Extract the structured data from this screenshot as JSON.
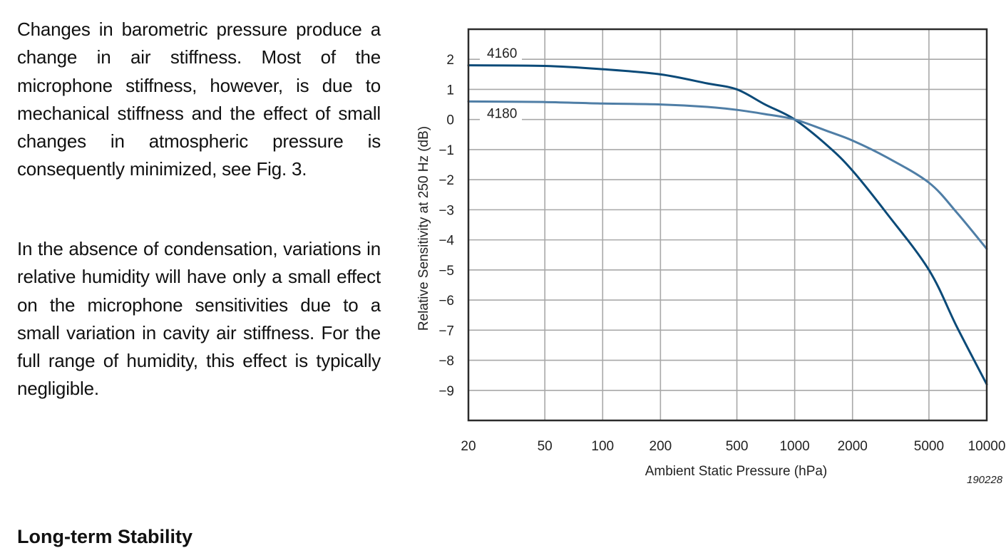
{
  "text": {
    "paragraph_1": "Changes in barometric pressure produce a change in air stiffness. Most of the microphone stiffness, however, is due to mechanical stiffness and the effect of small changes in atmospheric pressure is consequently minimized, see Fig. 3.",
    "paragraph_2": "In the absence of condensation, variations in relative humidity will have only a small effect on the microphone sensitivities due to a small variation in cavity air stiffness. For the full range of humidity, this effect is typically negligible.",
    "next_heading": "Long-term Stability"
  },
  "chart_data": {
    "type": "line",
    "title": "",
    "xlabel": "Ambient Static Pressure (hPa)",
    "ylabel": "Relative Sensitivity at 250 Hz (dB)",
    "xscale": "log",
    "xlim": [
      20,
      10000
    ],
    "ylim": [
      -10,
      3
    ],
    "grid": true,
    "x_ticks": [
      20,
      50,
      100,
      200,
      500,
      1000,
      2000,
      5000,
      10000
    ],
    "x_tick_labels": [
      "20",
      "50",
      "100",
      "200",
      "500",
      "1000",
      "2000",
      "5000",
      "10000"
    ],
    "y_ticks": [
      2,
      1,
      0,
      -1,
      -2,
      -3,
      -4,
      -5,
      -6,
      -7,
      -8,
      -9
    ],
    "y_tick_labels": [
      "2",
      "1",
      "0",
      "−1",
      "−2",
      "−3",
      "−4",
      "−5",
      "−6",
      "−7",
      "−8",
      "−9"
    ],
    "figure_id": "190228",
    "series": [
      {
        "name": "4160",
        "color": "#0b4a78",
        "label_at_y": 2,
        "x": [
          20,
          50,
          100,
          200,
          350,
          500,
          700,
          1000,
          1500,
          2000,
          3000,
          5000,
          7000,
          10000
        ],
        "values": [
          1.8,
          1.78,
          1.67,
          1.5,
          1.2,
          1.0,
          0.5,
          0.0,
          -0.9,
          -1.7,
          -3.1,
          -5.0,
          -6.9,
          -8.8
        ]
      },
      {
        "name": "4180",
        "color": "#4f7ea6",
        "label_at_y": 0,
        "x": [
          20,
          50,
          100,
          200,
          350,
          500,
          700,
          1000,
          1500,
          2000,
          3000,
          5000,
          7000,
          10000
        ],
        "values": [
          0.6,
          0.58,
          0.53,
          0.5,
          0.42,
          0.32,
          0.18,
          0.0,
          -0.4,
          -0.7,
          -1.25,
          -2.1,
          -3.1,
          -4.3
        ]
      }
    ]
  }
}
